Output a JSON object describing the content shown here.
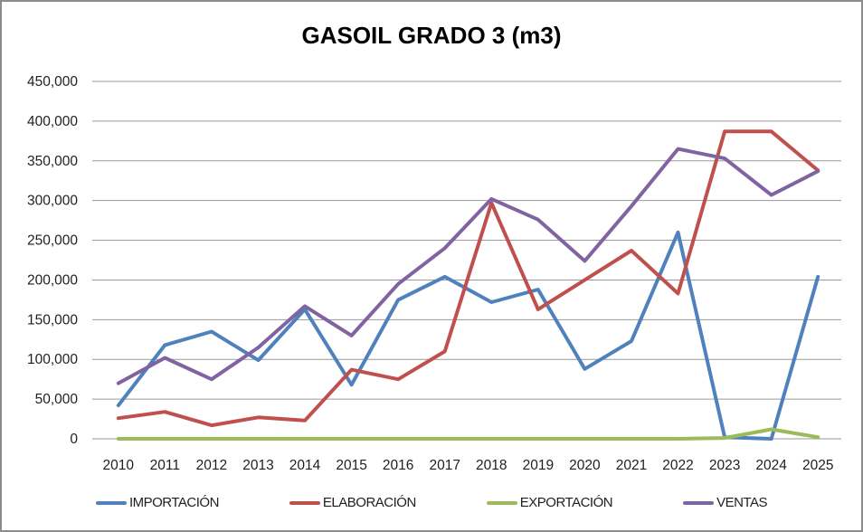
{
  "chart_data": {
    "type": "line",
    "title": "GASOIL GRADO 3 (m3)",
    "categories": [
      "2010",
      "2011",
      "2012",
      "2013",
      "2014",
      "2015",
      "2016",
      "2017",
      "2018",
      "2019",
      "2020",
      "2021",
      "2022",
      "2023",
      "2024",
      "2025"
    ],
    "series": [
      {
        "name": "IMPORTACIÓN",
        "color": "#4F81BD",
        "values": [
          42000,
          118000,
          135000,
          99000,
          163000,
          68000,
          175000,
          204000,
          172000,
          188000,
          88000,
          123000,
          260000,
          2000,
          0,
          204000
        ]
      },
      {
        "name": "ELABORACIÓN",
        "color": "#C0504D",
        "values": [
          26000,
          34000,
          17000,
          27000,
          23000,
          87000,
          75000,
          110000,
          297000,
          163000,
          200000,
          237000,
          183000,
          387000,
          387000,
          338000
        ]
      },
      {
        "name": "EXPORTACIÓN",
        "color": "#9BBB59",
        "values": [
          0,
          0,
          0,
          0,
          0,
          0,
          0,
          0,
          0,
          0,
          0,
          0,
          0,
          1000,
          12000,
          2000
        ]
      },
      {
        "name": "VENTAS",
        "color": "#8064A2",
        "values": [
          70000,
          102000,
          75000,
          115000,
          167000,
          130000,
          195000,
          240000,
          302000,
          276000,
          224000,
          293000,
          365000,
          353000,
          307000,
          337000
        ]
      }
    ],
    "ylim": [
      0,
      450000
    ],
    "ytick_values": [
      0,
      50000,
      100000,
      150000,
      200000,
      250000,
      300000,
      350000,
      400000,
      450000
    ],
    "ytick_labels": [
      "0",
      "50,000",
      "100,000",
      "150,000",
      "200,000",
      "250,000",
      "300,000",
      "350,000",
      "400,000",
      "450,000"
    ],
    "grid": true,
    "legend_position": "bottom",
    "gridline_color": "#9a9a9a",
    "axis_text_color": "#1f1f1f"
  }
}
